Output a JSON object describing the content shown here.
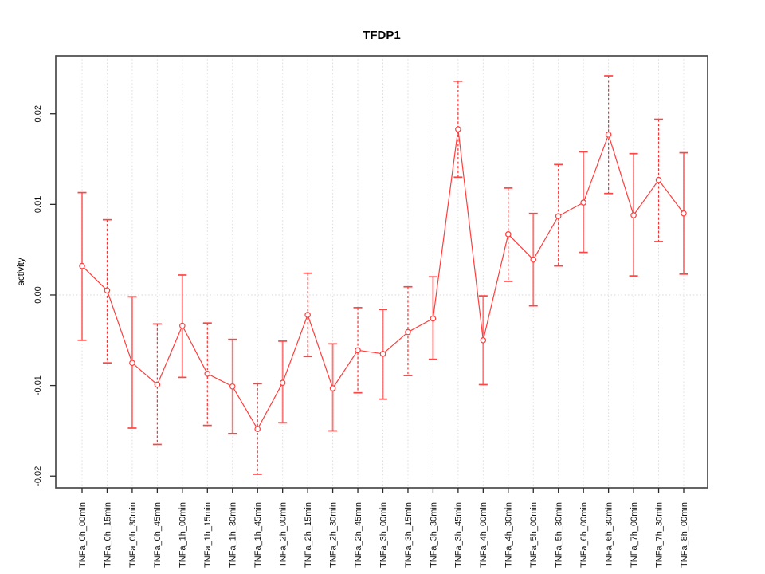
{
  "page": {
    "background": "#ffffff"
  },
  "chart_data": {
    "type": "line",
    "title": "TFDP1",
    "xlabel": "",
    "ylabel": "activity",
    "legend": "none",
    "grid": "vertical-dotted-gridlines-plus-dotted-zero-line",
    "marker": "open-circle",
    "errorbar_style_alternation": [
      "solid",
      "dashed"
    ],
    "categories": [
      "TNFa_0h_00min",
      "TNFa_0h_15min",
      "TNFa_0h_30min",
      "TNFa_0h_45min",
      "TNFa_1h_00min",
      "TNFa_1h_15min",
      "TNFa_1h_30min",
      "TNFa_1h_45min",
      "TNFa_2h_00min",
      "TNFa_2h_15min",
      "TNFa_2h_30min",
      "TNFa_2h_45min",
      "TNFa_3h_00min",
      "TNFa_3h_15min",
      "TNFa_3h_30min",
      "TNFa_3h_45min",
      "TNFa_4h_00min",
      "TNFa_4h_30min",
      "TNFa_5h_00min",
      "TNFa_5h_30min",
      "TNFa_6h_00min",
      "TNFa_6h_30min",
      "TNFa_7h_00min",
      "TNFa_7h_30min",
      "TNFa_8h_00min"
    ],
    "series": [
      {
        "name": "TFDP1 activity",
        "values": [
          0.0032,
          0.0005,
          -0.0075,
          -0.0099,
          -0.0034,
          -0.0087,
          -0.0101,
          -0.0148,
          -0.0097,
          -0.0022,
          -0.0103,
          -0.0061,
          -0.0065,
          -0.0041,
          -0.0026,
          0.0183,
          -0.005,
          0.0067,
          0.0039,
          0.0087,
          0.0102,
          0.0177,
          0.0088,
          0.0127,
          0.009
        ],
        "error_low": [
          -0.005,
          -0.0075,
          -0.0147,
          -0.0165,
          -0.0091,
          -0.0144,
          -0.0153,
          -0.0198,
          -0.0141,
          -0.0068,
          -0.015,
          -0.0108,
          -0.0115,
          -0.0089,
          -0.0071,
          0.013,
          -0.0099,
          0.0015,
          -0.0012,
          0.0032,
          0.0047,
          0.0112,
          0.0021,
          0.0059,
          0.0023
        ],
        "error_high": [
          0.0113,
          0.0083,
          -0.0002,
          -0.0032,
          0.0022,
          -0.0031,
          -0.0049,
          -0.0098,
          -0.0051,
          0.0024,
          -0.0054,
          -0.0014,
          -0.0016,
          0.0009,
          0.002,
          0.0236,
          -0.0001,
          0.0118,
          0.009,
          0.0144,
          0.0158,
          0.0242,
          0.0156,
          0.0194,
          0.0157
        ]
      }
    ],
    "yticks": {
      "values": [
        -0.02,
        -0.01,
        0,
        0.01,
        0.02
      ],
      "labels": [
        "-0.02",
        "-0.01",
        "0.00",
        "0.01",
        "0.02"
      ]
    },
    "ylim": [
      -0.0213,
      0.0264
    ],
    "colors": {
      "line": "#ff3d3d",
      "marker": "#ff3d3d",
      "errorbar_solid": "#ff5a5a",
      "errorbar_dashed": "#ff2f2f",
      "errorbar_cap": "#ff4444",
      "grid": "#dcdcdc",
      "zero_line": "#d8d8d8",
      "box": "#4a4a4a",
      "tick": "#2a2a2a",
      "text": "#111111"
    }
  }
}
